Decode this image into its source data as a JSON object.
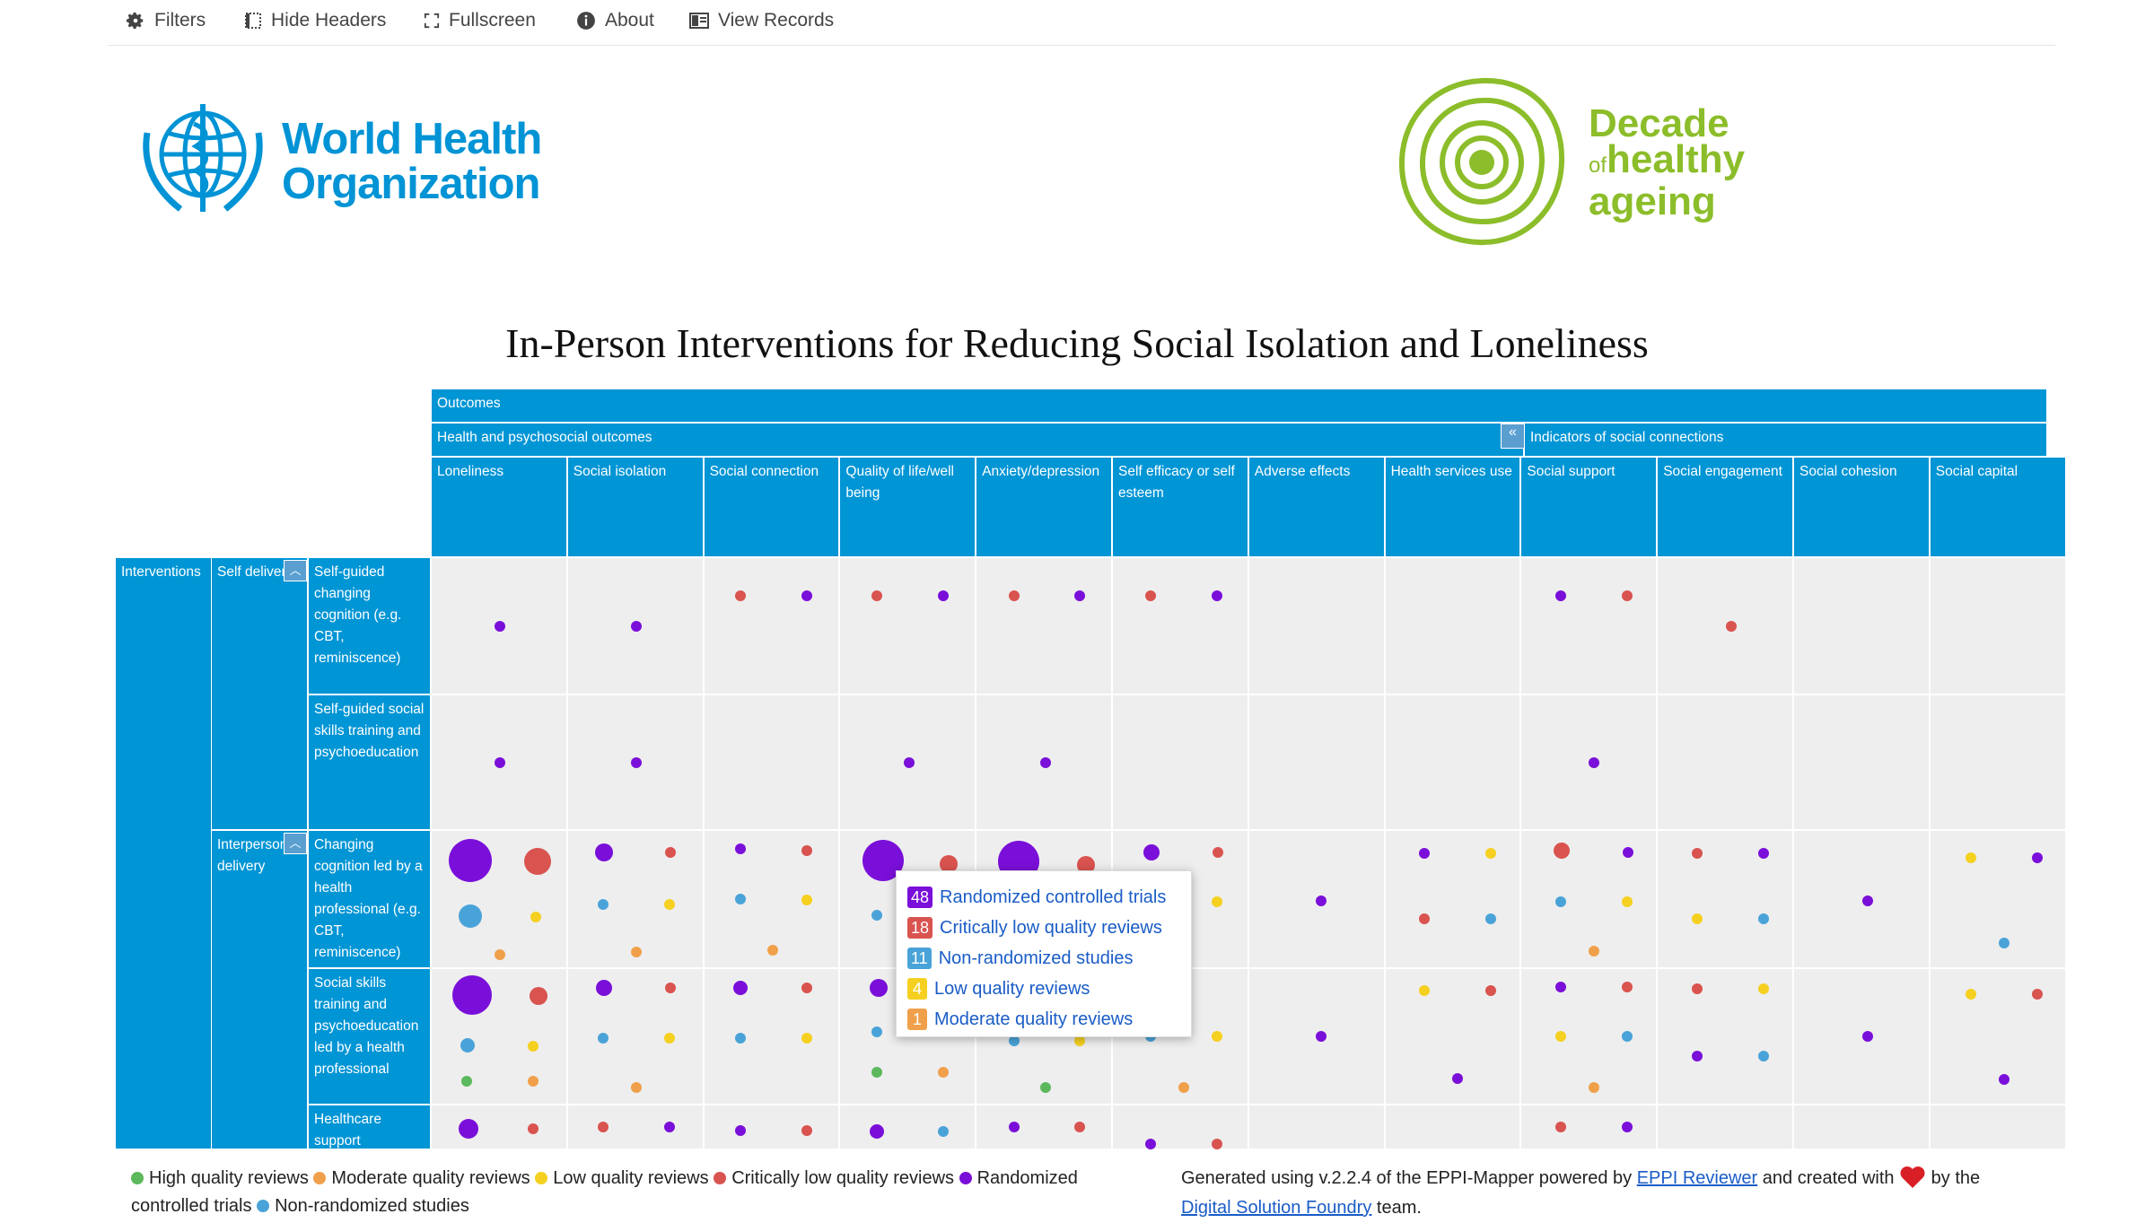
{
  "toolbar": {
    "filters": "Filters",
    "hide_headers": "Hide Headers",
    "fullscreen": "Fullscreen",
    "about": "About",
    "view_records": "View Records"
  },
  "logos": {
    "who_line1": "World Health",
    "who_line2": "Organization",
    "decade_line1": "Decade",
    "decade_of": "of",
    "decade_line2": "healthy",
    "decade_line3": "ageing"
  },
  "title": "In-Person Interventions for Reducing Social Isolation and Loneliness",
  "headers": {
    "outcomes": "Outcomes",
    "health_group": "Health and psychosocial outcomes",
    "indicators_group": "Indicators of social connections",
    "columns": [
      "Loneliness",
      "Social isolation",
      "Social connection",
      "Quality of life/well being",
      "Anxiety/depression",
      "Self efficacy or self esteem",
      "Adverse effects",
      "Health services use",
      "Social support",
      "Social engagement",
      "Social cohesion",
      "Social capital"
    ],
    "interventions": "Interventions",
    "self_delivery": "Self delivery",
    "interpersonal_delivery": "Interpersonal delivery",
    "rows": [
      "Self-guided changing cognition (e.g. CBT, reminiscence)",
      "Self-guided social skills training and psychoeducation",
      "Changing cognition led by a health professional (e.g. CBT, reminiscence)",
      "Social skills training and psychoeducation led by a health professional",
      "Healthcare support"
    ]
  },
  "colors": {
    "header_blue": "#0095d5",
    "randomized": "#7a0fd9",
    "critically_low": "#d9534f",
    "non_randomized": "#4aa3d8",
    "low": "#f5d020",
    "moderate": "#f0a04b",
    "high": "#5cb85c"
  },
  "tooltip": {
    "items": [
      {
        "count": "48",
        "label": "Randomized controlled trials",
        "color": "#7a0fd9"
      },
      {
        "count": "18",
        "label": "Critically low quality reviews",
        "color": "#d9534f"
      },
      {
        "count": "11",
        "label": "Non-randomized studies",
        "color": "#4aa3d8"
      },
      {
        "count": "4",
        "label": "Low quality reviews",
        "color": "#f5d020"
      },
      {
        "count": "1",
        "label": "Moderate quality reviews",
        "color": "#f0a04b"
      }
    ]
  },
  "legend": {
    "high": "High quality reviews",
    "moderate": "Moderate quality reviews",
    "low": "Low quality reviews",
    "critically_low": "Critically low quality reviews",
    "randomized": "Randomized controlled trials",
    "non_randomized": "Non-randomized studies"
  },
  "credit": {
    "prefix": "Generated using v.2.2.4 of the EPPI-Mapper powered by",
    "link1": "EPPI Reviewer",
    "middle": "and created with",
    "suffix": "by the",
    "link2": "Digital Solution Foundry",
    "end": "team."
  }
}
